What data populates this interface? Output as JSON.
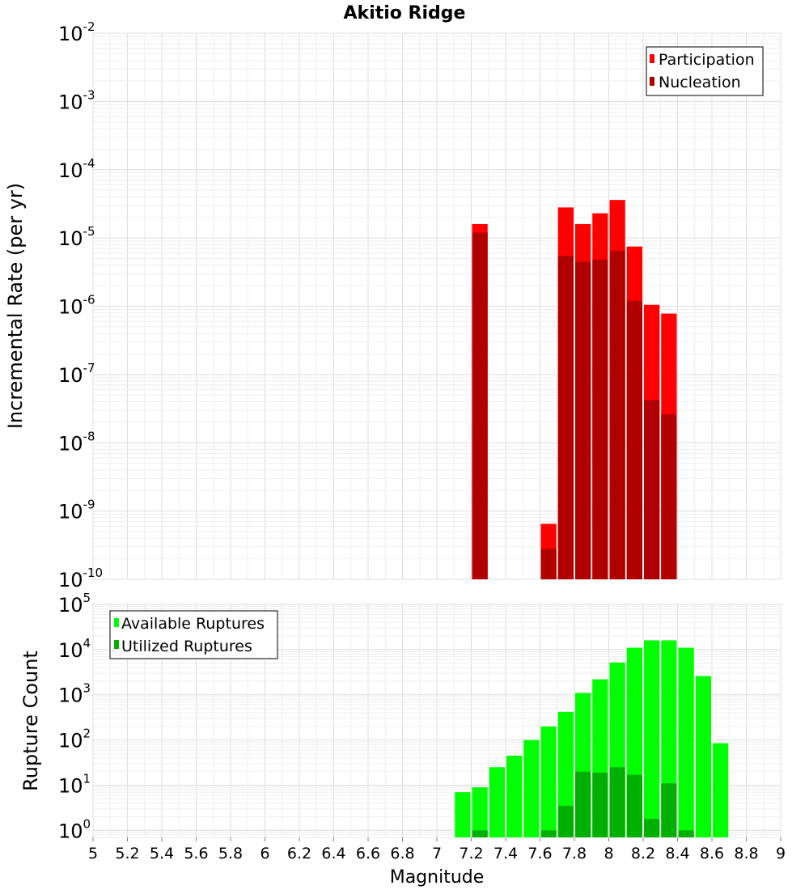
{
  "chart_data": [
    {
      "type": "bar",
      "title": "Akitio Ridge",
      "xlabel": "",
      "ylabel": "Incremental Rate (per yr)",
      "yscale": "log",
      "ylim": [
        1e-10,
        0.01
      ],
      "xlim": [
        5,
        9
      ],
      "bar_width": 0.1,
      "legend_position": "top-right",
      "x": [
        7.25,
        7.65,
        7.75,
        7.85,
        7.95,
        8.05,
        8.15,
        8.25,
        8.35
      ],
      "series": [
        {
          "name": "Participation",
          "color": "#ff0000",
          "values": [
            1.6e-05,
            6.5e-10,
            2.8e-05,
            1.6e-05,
            2.3e-05,
            3.6e-05,
            7.5e-06,
            1.05e-06,
            7.8e-07
          ]
        },
        {
          "name": "Nucleation",
          "color": "#b00000",
          "values": [
            1.2e-05,
            2.8e-10,
            5.5e-06,
            4.5e-06,
            4.8e-06,
            6.5e-06,
            1.2e-06,
            4.2e-08,
            2.6e-08
          ]
        }
      ],
      "y_tick_base": "10",
      "y_tick_exponents": [
        "-10",
        "-9",
        "-8",
        "-7",
        "-6",
        "-5",
        "-4",
        "-3",
        "-2"
      ]
    },
    {
      "type": "bar",
      "title": "",
      "xlabel": "Magnitude",
      "ylabel": "Rupture Count",
      "yscale": "log",
      "ylim": [
        0.7,
        100000
      ],
      "xlim": [
        5,
        9
      ],
      "bar_width": 0.1,
      "legend_position": "top-left",
      "x": [
        7.15,
        7.25,
        7.35,
        7.45,
        7.55,
        7.65,
        7.75,
        7.85,
        7.95,
        8.05,
        8.15,
        8.25,
        8.35,
        8.45,
        8.55,
        8.65
      ],
      "series": [
        {
          "name": "Available Ruptures",
          "color": "#00ff00",
          "values": [
            7,
            9,
            25,
            45,
            100,
            200,
            420,
            1100,
            2200,
            5200,
            11000,
            16000,
            16000,
            11000,
            2600,
            85
          ]
        },
        {
          "name": "Utilized Ruptures",
          "color": "#00b000",
          "values": [
            0,
            1,
            0,
            0,
            0,
            1,
            3.5,
            20,
            19,
            25,
            17,
            1.8,
            11,
            1,
            0,
            0
          ]
        }
      ],
      "y_tick_base": "10",
      "y_tick_exponents": [
        "0",
        "1",
        "2",
        "3",
        "4",
        "5"
      ],
      "x_tick_labels": [
        "5",
        "5.2",
        "5.4",
        "5.6",
        "5.8",
        "6",
        "6.2",
        "6.4",
        "6.6",
        "6.8",
        "7",
        "7.2",
        "7.4",
        "7.6",
        "7.8",
        "8",
        "8.2",
        "8.4",
        "8.6",
        "8.8",
        "9"
      ]
    }
  ]
}
